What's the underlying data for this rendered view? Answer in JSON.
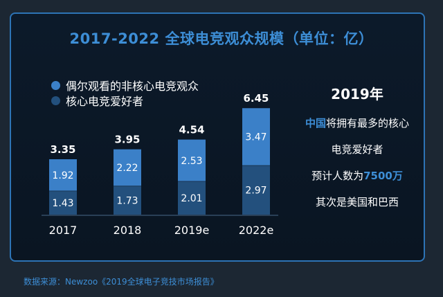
{
  "chart_data": {
    "type": "bar",
    "stacked": true,
    "title": "2017-2022 全球电竞观众规模（单位：亿）",
    "categories": [
      "2017",
      "2018",
      "2019e",
      "2022e"
    ],
    "totals": [
      "3.35",
      "3.95",
      "4.54",
      "6.45"
    ],
    "series": [
      {
        "name": "偶尔观看的非核心电竞观众",
        "values": [
          1.92,
          2.22,
          2.53,
          3.47
        ],
        "color": "#3b80c8"
      },
      {
        "name": "核心电竞爱好者",
        "values": [
          1.43,
          1.73,
          2.01,
          2.97
        ],
        "color": "#23507d"
      }
    ],
    "ylim": [
      0,
      6.45
    ]
  },
  "side": {
    "title": "2019年",
    "line1_hl": "中国",
    "line1_rest": "将拥有最多的核心",
    "line2": "电竞爱好者",
    "line3_pre": "预计人数为",
    "line3_hl": "7500万",
    "line4": "其次是美国和巴西"
  },
  "source": "数据来源：Newzoo《2019全球电子竞技市场报告》",
  "colors": {
    "accent": "#3d8ed6",
    "frame": "#2d74b6"
  }
}
